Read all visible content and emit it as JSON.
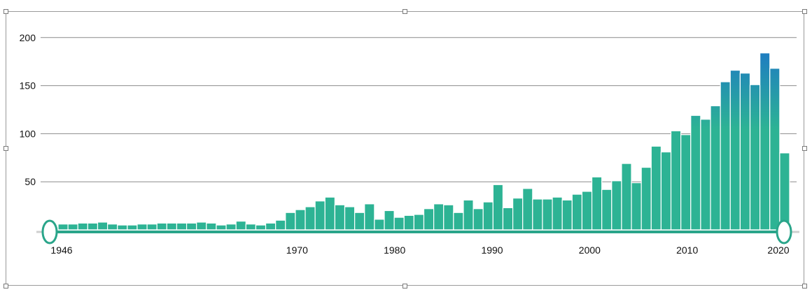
{
  "chart_data": {
    "type": "bar",
    "title": "",
    "xlabel": "",
    "ylabel": "",
    "x_start": 1946,
    "x_end": 2021,
    "values": [
      6,
      6,
      7,
      7,
      8,
      6,
      5,
      5,
      6,
      6,
      7,
      7,
      7,
      7,
      8,
      7,
      5,
      6,
      9,
      6,
      5,
      7,
      10,
      18,
      21,
      24,
      30,
      34,
      26,
      24,
      18,
      27,
      11,
      20,
      13,
      15,
      16,
      22,
      27,
      26,
      18,
      31,
      22,
      29,
      47,
      23,
      33,
      43,
      32,
      32,
      34,
      31,
      37,
      40,
      55,
      42,
      51,
      69,
      49,
      65,
      87,
      81,
      103,
      99,
      119,
      115,
      129,
      154,
      166,
      163,
      151,
      184,
      168,
      80
    ],
    "ylim": [
      0,
      210
    ],
    "y_ticks": [
      50,
      100,
      150,
      200
    ],
    "y_tick_labels": [
      "50",
      "100",
      "150",
      "200"
    ],
    "x_ticks": [
      1946,
      1970,
      1980,
      1990,
      2000,
      2010,
      2020
    ],
    "x_tick_labels": [
      "1946",
      "1970",
      "1980",
      "1990",
      "2000",
      "2010",
      "2020"
    ],
    "range_start": 1946,
    "range_end": 2020,
    "grid": true,
    "colors": {
      "low": "#2db394",
      "high": "#1f7fbf",
      "grid": "#8c8c8c",
      "slider": "#2aa58a"
    }
  }
}
